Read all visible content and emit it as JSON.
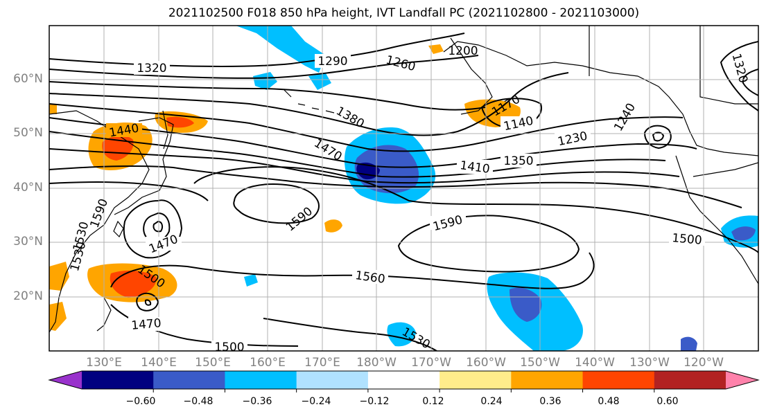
{
  "title": "2021102500 F018 850 hPa height, IVT Landfall PC (2021102800 - 2021103000)",
  "lat_labels": [
    {
      "text": "60°N",
      "lat": 60
    },
    {
      "text": "50°N",
      "lat": 50
    },
    {
      "text": "40°N",
      "lat": 40
    },
    {
      "text": "30°N",
      "lat": 30
    },
    {
      "text": "20°N",
      "lat": 20
    }
  ],
  "lon_labels": [
    "130°E",
    "140°E",
    "150°E",
    "160°E",
    "170°E",
    "180°W",
    "170°W",
    "160°W",
    "150°W",
    "140°W",
    "130°W",
    "120°W"
  ],
  "colorbar": {
    "colors": [
      "#9932CC",
      "#000080",
      "#3A5BC8",
      "#00BFFF",
      "#B0E2FF",
      "#FFFFFF",
      "#FFEC8B",
      "#FFA500",
      "#FF4500",
      "#B22222",
      "#FF82AB"
    ],
    "tick_labels": [
      "−0.60",
      "−0.48",
      "−0.36",
      "−0.24",
      "−0.12",
      "0.12",
      "0.24",
      "0.36",
      "0.48",
      "0.60"
    ]
  },
  "contour_labels": [
    "1320",
    "1290",
    "1260",
    "1200",
    "1320",
    "1440",
    "1380",
    "1470",
    "1170",
    "1140",
    "1230",
    "1240",
    "1410",
    "1350",
    "1590",
    "1590",
    "1500",
    "1530",
    "1470",
    "1500",
    "1560",
    "1470",
    "1530",
    "1500",
    "1530",
    "1590"
  ]
}
